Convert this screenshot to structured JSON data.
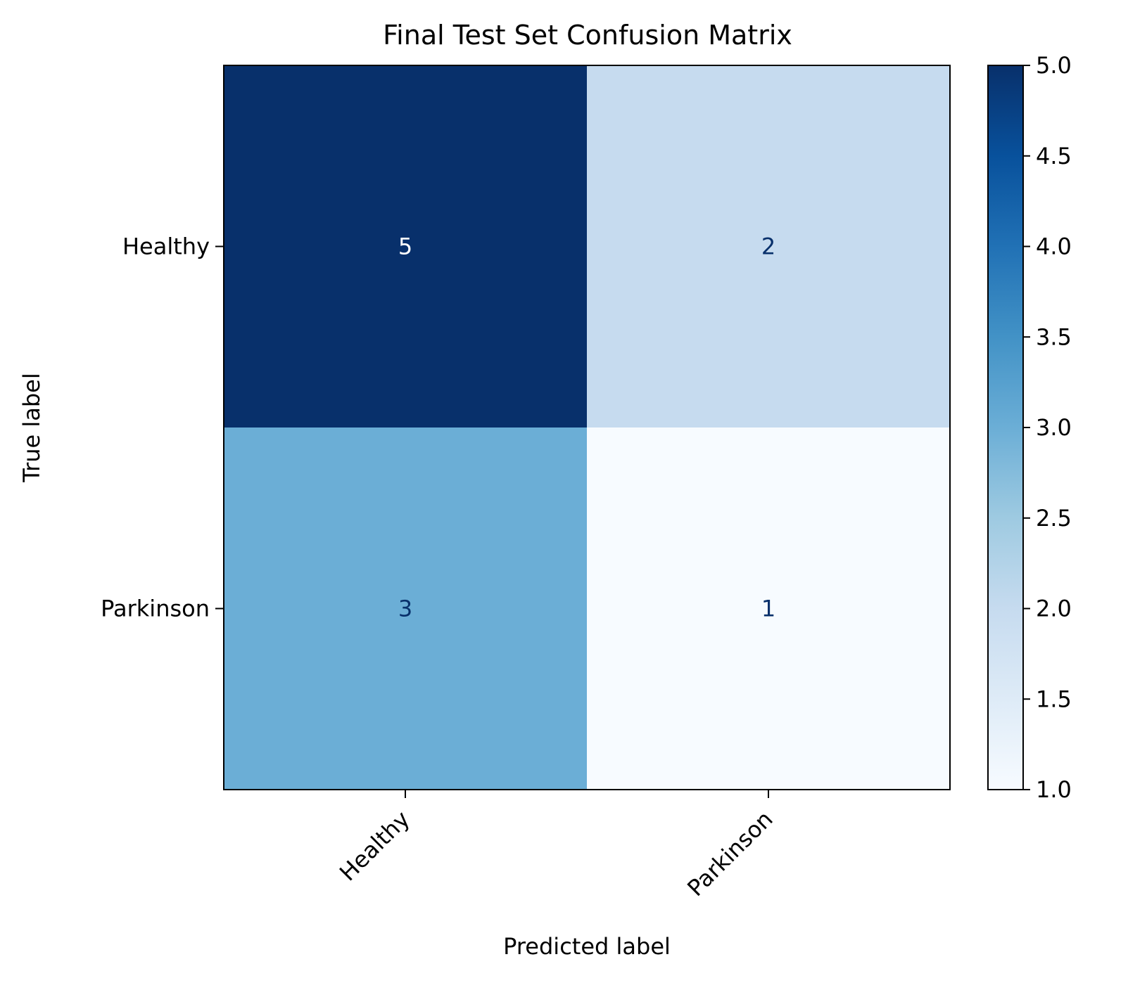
{
  "chart_data": {
    "type": "heatmap",
    "title": "Final Test Set Confusion Matrix",
    "xlabel": "Predicted label",
    "ylabel": "True label",
    "x_categories": [
      "Healthy",
      "Parkinson"
    ],
    "y_categories": [
      "Healthy",
      "Parkinson"
    ],
    "values": [
      [
        5,
        2
      ],
      [
        3,
        1
      ]
    ],
    "colormap": "Blues",
    "color_range": [
      1,
      5
    ],
    "colorbar_ticks": [
      "1.0",
      "1.5",
      "2.0",
      "2.5",
      "3.0",
      "3.5",
      "4.0",
      "4.5",
      "5.0"
    ],
    "grid": false
  }
}
